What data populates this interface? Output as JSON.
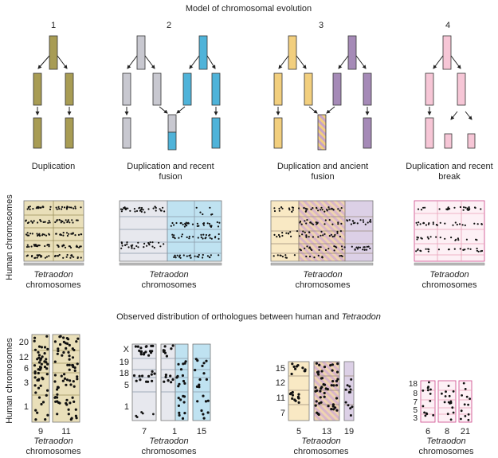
{
  "title": "Model of chromosomal evolution",
  "model_numbers": [
    "1",
    "2",
    "3",
    "4"
  ],
  "model_captions": [
    [
      "Duplication"
    ],
    [
      "Duplication and recent",
      "fusion"
    ],
    [
      "Duplication and ancient",
      "fusion"
    ],
    [
      "Duplication and recent",
      "break"
    ]
  ],
  "y_axis_label": "Human chromosomes",
  "x_axis_label": {
    "italic": "Tetraodon",
    "plain": "chromosomes"
  },
  "observed_title": {
    "plain": "Observed distribution of orthologues between human and ",
    "italic": "Tetraodon"
  },
  "observed": [
    {
      "human_labels": [
        "20",
        "12",
        "6",
        "3",
        "1"
      ],
      "tetraodon_labels": [
        "9",
        "11"
      ]
    },
    {
      "human_labels": [
        "X",
        "19",
        "18",
        "5",
        "1"
      ],
      "tetraodon_labels": [
        "7",
        "1",
        "15"
      ]
    },
    {
      "human_labels": [
        "15",
        "12",
        "11",
        "7"
      ],
      "tetraodon_labels": [
        "5",
        "13",
        "19"
      ]
    },
    {
      "human_labels": [
        "18",
        "8",
        "7",
        "5",
        "3"
      ],
      "tetraodon_labels": [
        "6",
        "8",
        "21"
      ]
    }
  ],
  "colors": {
    "olive": "#a89c54",
    "olive_light": "#e9dfb9",
    "grey": "#c8c8d0",
    "grey_light": "#e7e8ee",
    "blue": "#4fb3d9",
    "blue_light": "#bfe2f1",
    "gold": "#f2cf7e",
    "gold_light": "#f9e9c4",
    "purple": "#a58ab7",
    "purple_light": "#dcd0e6",
    "pink": "#f6c6d6",
    "pink_light": "#fdf0f5"
  }
}
